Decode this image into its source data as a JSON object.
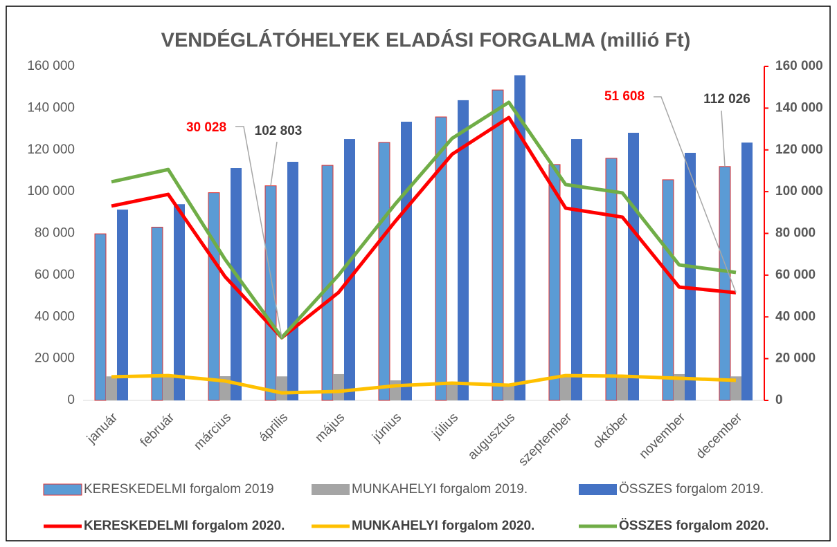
{
  "chart_data": {
    "type": "bar",
    "title": "VENDÉGLÁTÓHELYEK ELADÁSI FORGALMA (millió Ft)",
    "categories": [
      "január",
      "február",
      "március",
      "április",
      "május",
      "június",
      "július",
      "augusztus",
      "szeptember",
      "október",
      "november",
      "december"
    ],
    "ylim": [
      0,
      160000
    ],
    "yticks": [
      0,
      {
        "value": 20000,
        "label": "20 000"
      },
      {
        "value": 40000,
        "label": "40 000"
      },
      {
        "value": 60000,
        "label": "60 000"
      },
      {
        "value": 80000,
        "label": "80 000"
      },
      {
        "value": 100000,
        "label": "100 000"
      },
      {
        "value": 120000,
        "label": "120 000"
      },
      {
        "value": 140000,
        "label": "140 000"
      },
      {
        "value": 160000,
        "label": "160 000"
      }
    ],
    "y2lim": [
      0,
      160000
    ],
    "y2ticks": [
      0,
      {
        "value": 20000,
        "label": "20 000"
      },
      {
        "value": 40000,
        "label": "40 000"
      },
      {
        "value": 60000,
        "label": "60 000"
      },
      {
        "value": 80000,
        "label": "80 000"
      },
      {
        "value": 100000,
        "label": "100 000"
      },
      {
        "value": 120000,
        "label": "120 000"
      },
      {
        "value": 140000,
        "label": "140 000"
      },
      {
        "value": 160000,
        "label": "160 000"
      }
    ],
    "grid": false,
    "legend": "bottom",
    "series": [
      {
        "name": "KERESKEDELMI forgalom 2019",
        "type": "bar",
        "color": "#5b9bd5",
        "border": "#e03030",
        "values": [
          79800,
          83000,
          99500,
          102803,
          112600,
          123600,
          135800,
          148700,
          113000,
          116000,
          105700,
          112026
        ],
        "value_labels": [
          null,
          null,
          null,
          "102 803",
          null,
          null,
          null,
          null,
          null,
          null,
          null,
          "112 026"
        ]
      },
      {
        "name": "MUNKAHELYI forgalom 2019.",
        "type": "bar",
        "color": "#a5a5a5",
        "values": [
          11500,
          12000,
          11600,
          11500,
          12600,
          9600,
          8000,
          8000,
          12000,
          12000,
          12600,
          11500
        ]
      },
      {
        "name": "ÖSSZES forgalom 2019.",
        "type": "bar",
        "color": "#4472c4",
        "values": [
          91400,
          94000,
          111300,
          114300,
          125200,
          133500,
          143800,
          155700,
          125200,
          128200,
          118600,
          123500
        ]
      },
      {
        "name": "KERESKEDELMI forgalom 2020.",
        "type": "line",
        "axis": "y2",
        "color": "#ff0000",
        "values": [
          93100,
          98700,
          59300,
          30028,
          51700,
          85800,
          117900,
          135500,
          92100,
          87800,
          54300,
          51608
        ],
        "value_labels": [
          null,
          null,
          null,
          "30 028",
          null,
          null,
          null,
          null,
          null,
          null,
          null,
          "51 608"
        ]
      },
      {
        "name": "MUNKAHELYI forgalom 2020.",
        "type": "line",
        "axis": "y2",
        "color": "#ffc000",
        "values": [
          11300,
          11900,
          9300,
          3600,
          4300,
          7000,
          8300,
          7300,
          11900,
          11600,
          10600,
          9600
        ]
      },
      {
        "name": "ÖSSZES forgalom 2020.",
        "type": "line",
        "axis": "y2",
        "color": "#70ad47",
        "values": [
          104700,
          110600,
          67600,
          30100,
          60000,
          94100,
          125500,
          142800,
          103400,
          99400,
          64900,
          61300
        ]
      }
    ]
  }
}
